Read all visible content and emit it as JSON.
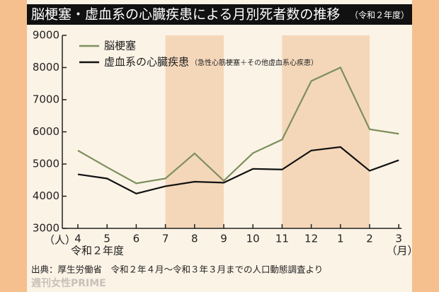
{
  "chart_data": {
    "type": "line",
    "title": "脳梗塞・虚血系の心臓疾患による月別死者数の推移",
    "subtitle": "（令和２年度）",
    "categories": [
      "4",
      "5",
      "6",
      "7",
      "8",
      "9",
      "10",
      "11",
      "12",
      "1",
      "2",
      "3"
    ],
    "series": [
      {
        "name": "脳梗塞",
        "color": "#7d8f5c",
        "values": [
          5420,
          4900,
          4400,
          4550,
          5330,
          4480,
          5340,
          5760,
          7580,
          8000,
          6080,
          5940
        ]
      },
      {
        "name": "虚血系の心臓疾患",
        "note": "（急性心筋梗塞＋その他虚血系心疾患）",
        "color": "#111111",
        "values": [
          4680,
          4550,
          4080,
          4310,
          4450,
          4420,
          4850,
          4830,
          5420,
          5530,
          4790,
          5120
        ]
      }
    ],
    "shaded": [
      [
        3,
        5
      ],
      [
        7,
        10
      ]
    ],
    "y_unit": "（人）",
    "x_note": "令和２年度",
    "x_unit": "（月）",
    "ylim": [
      3000,
      9000
    ],
    "yticks": [
      3000,
      4000,
      5000,
      6000,
      7000,
      8000,
      9000
    ],
    "source": "出典：厚生労働省　令和２年４月～令和３年３月までの人口動態調査より",
    "watermark": "週刊女性PRIME"
  }
}
